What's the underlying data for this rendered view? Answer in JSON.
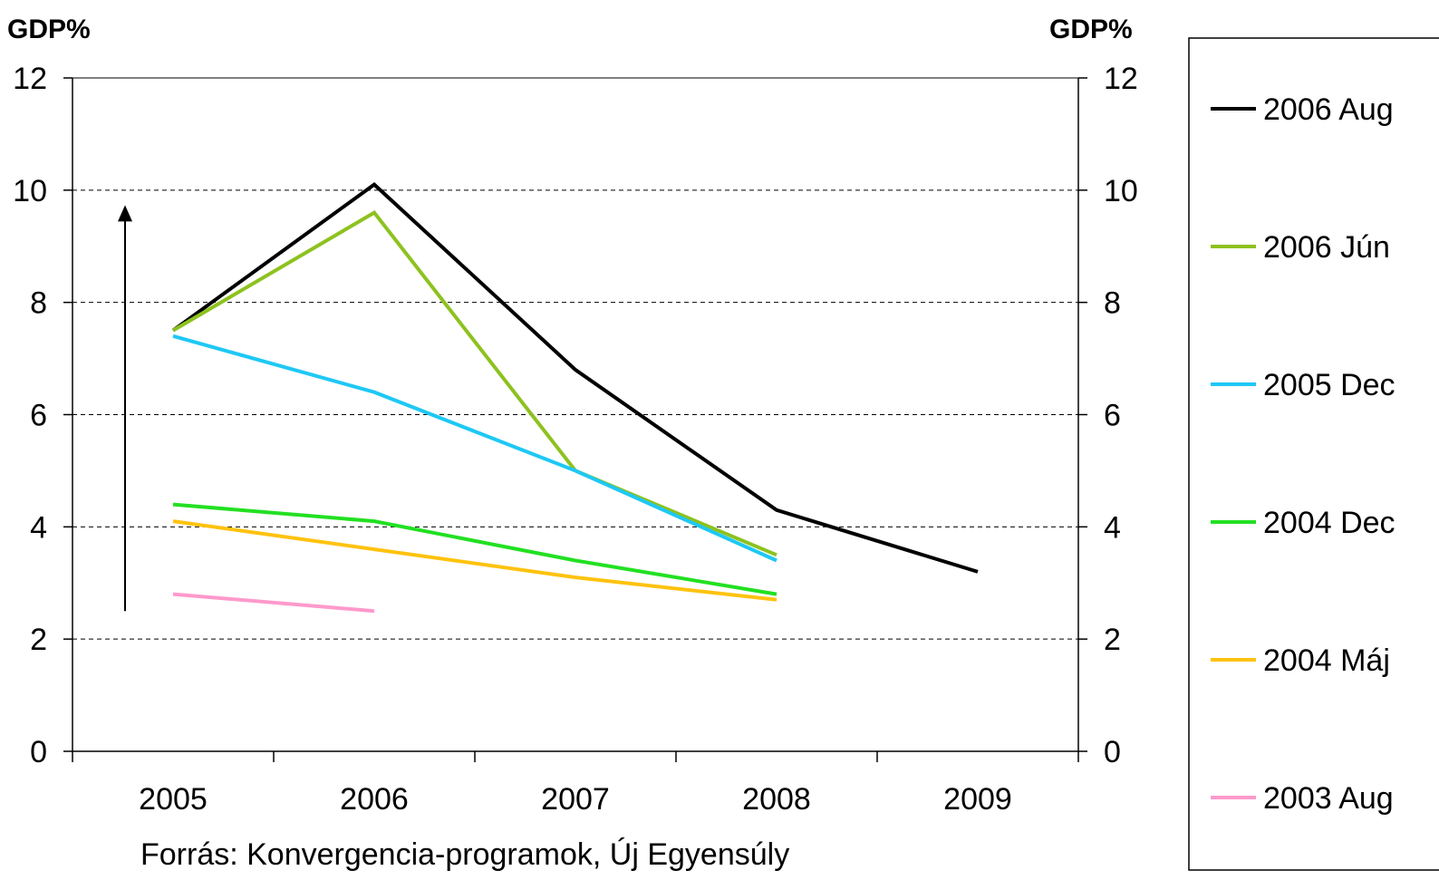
{
  "chart_data": {
    "type": "line",
    "y_left_title": "GDP%",
    "y_right_title": "GDP%",
    "source_note": "Forrás: Konvergencia-programok, Új Egyensúly",
    "categories": [
      "2005",
      "2006",
      "2007",
      "2008",
      "2009"
    ],
    "ylim": [
      0,
      12
    ],
    "y_ticks": [
      "0",
      "2",
      "4",
      "6",
      "8",
      "10",
      "12"
    ],
    "grid": "horizontal dashed at 2, 4, 6, 8, 10",
    "legend_position": "right",
    "annotation": "upward arrow from 2.5 to 9.7, left of 2005",
    "series": [
      {
        "name": "2006 Aug",
        "color": "#000000",
        "values": [
          7.5,
          10.1,
          6.8,
          4.3,
          3.2
        ]
      },
      {
        "name": "2006 Jún",
        "color": "#8DC21F",
        "values": [
          7.5,
          9.6,
          5.0,
          3.5,
          null
        ]
      },
      {
        "name": "2005 Dec",
        "color": "#1EC8F5",
        "values": [
          7.4,
          6.4,
          5.0,
          3.4,
          null
        ]
      },
      {
        "name": "2004 Dec",
        "color": "#22E022",
        "values": [
          4.4,
          4.1,
          3.4,
          2.8,
          null
        ]
      },
      {
        "name": "2004 Máj",
        "color": "#FFC20E",
        "values": [
          4.1,
          3.6,
          3.1,
          2.7,
          null
        ]
      },
      {
        "name": "2003 Aug",
        "color": "#FF99CC",
        "values": [
          2.8,
          2.5,
          null,
          null,
          null
        ]
      }
    ]
  }
}
